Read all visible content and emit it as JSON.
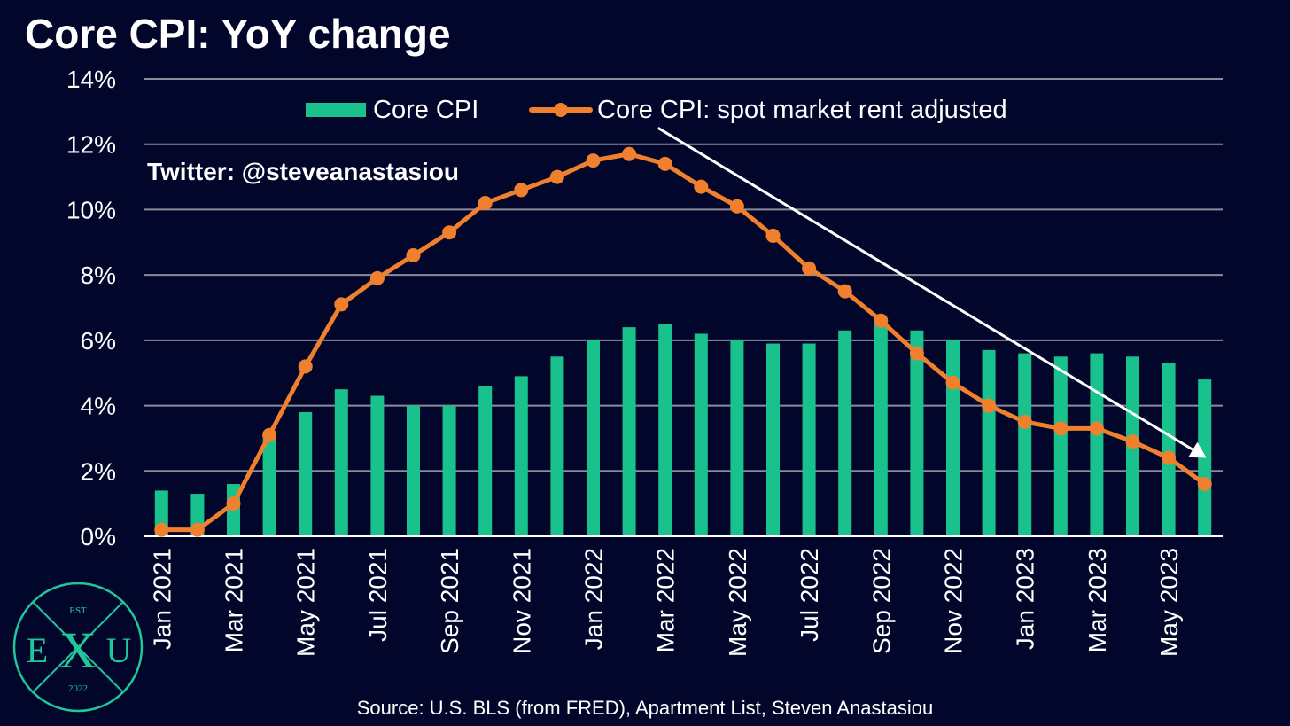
{
  "header": {
    "title": "Core CPI: YoY change"
  },
  "annotation": {
    "twitter": "Twitter: @steveanastasiou"
  },
  "footer": {
    "source": "Source: U.S. BLS (from FRED), Apartment List, Steven Anastasiou"
  },
  "logo": {
    "top_text": "EST",
    "left_letter": "E",
    "center_letter": "X",
    "right_letter": "U",
    "bottom_text": "2022"
  },
  "colors": {
    "background": "#03062b",
    "bar": "#19c28c",
    "line": "#f0802e",
    "grid": "#8a8c9c",
    "text": "#ffffff",
    "logo": "#1fc79a"
  },
  "chart_data": {
    "type": "bar",
    "title": "Core CPI: YoY change",
    "xlabel": "",
    "ylabel": "",
    "ylim": [
      0,
      14
    ],
    "yticks": [
      0,
      2,
      4,
      6,
      8,
      10,
      12,
      14
    ],
    "ytick_labels": [
      "0%",
      "2%",
      "4%",
      "6%",
      "8%",
      "10%",
      "12%",
      "14%"
    ],
    "grid": true,
    "legend_position": "top",
    "categories": [
      "Jan 2021",
      "Feb 2021",
      "Mar 2021",
      "Apr 2021",
      "May 2021",
      "Jun 2021",
      "Jul 2021",
      "Aug 2021",
      "Sep 2021",
      "Oct 2021",
      "Nov 2021",
      "Dec 2021",
      "Jan 2022",
      "Feb 2022",
      "Mar 2022",
      "Apr 2022",
      "May 2022",
      "Jun 2022",
      "Jul 2022",
      "Aug 2022",
      "Sep 2022",
      "Oct 2022",
      "Nov 2022",
      "Dec 2022",
      "Jan 2023",
      "Feb 2023",
      "Mar 2023",
      "Apr 2023",
      "May 2023",
      "Jun 2023"
    ],
    "x_tick_labels": [
      "Jan 2021",
      "Mar 2021",
      "May 2021",
      "Jul 2021",
      "Sep 2021",
      "Nov 2021",
      "Jan 2022",
      "Mar 2022",
      "May 2022",
      "Jul 2022",
      "Sep 2022",
      "Nov 2022",
      "Jan 2023",
      "Mar 2023",
      "May 2023"
    ],
    "series": [
      {
        "name": "Core CPI",
        "type": "bar",
        "values": [
          1.4,
          1.3,
          1.6,
          3.0,
          3.8,
          4.5,
          4.3,
          4.0,
          4.0,
          4.6,
          4.9,
          5.5,
          6.0,
          6.4,
          6.5,
          6.2,
          6.0,
          5.9,
          5.9,
          6.3,
          6.6,
          6.3,
          6.0,
          5.7,
          5.6,
          5.5,
          5.6,
          5.5,
          5.3,
          4.8
        ]
      },
      {
        "name": "Core CPI: spot market rent adjusted",
        "type": "line",
        "values": [
          0.2,
          0.2,
          1.0,
          3.1,
          5.2,
          7.1,
          7.9,
          8.6,
          9.3,
          10.2,
          10.6,
          11.0,
          11.5,
          11.7,
          11.4,
          10.7,
          10.1,
          9.2,
          8.2,
          7.5,
          6.6,
          5.6,
          4.7,
          4.0,
          3.5,
          3.3,
          3.3,
          2.9,
          2.4,
          1.6
        ]
      }
    ],
    "trend_arrow": {
      "from": {
        "category": "Mar 2022",
        "value": 12.5
      },
      "to": {
        "category": "Jun 2023",
        "value": 2.4
      }
    }
  }
}
